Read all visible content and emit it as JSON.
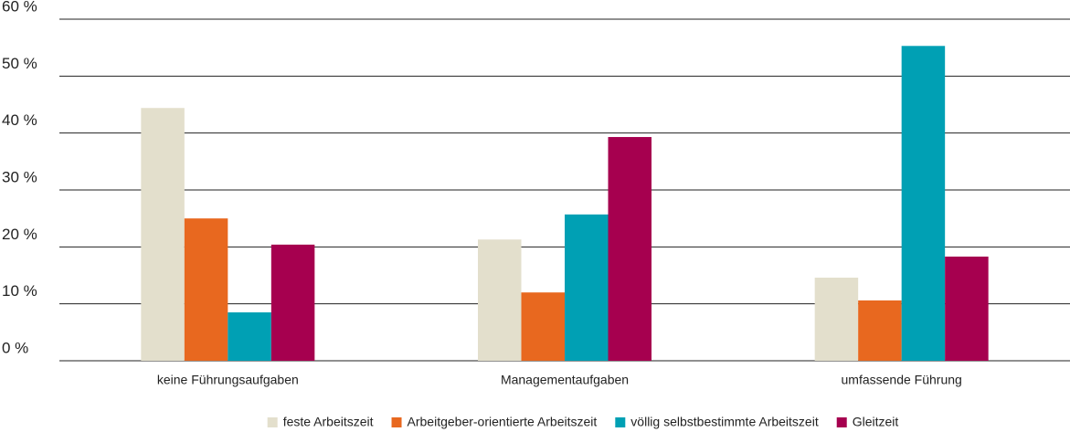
{
  "chart_data": {
    "type": "bar",
    "categories": [
      "keine Führungsaufgaben",
      "Managementaufgaben",
      "umfassende Führung"
    ],
    "series": [
      {
        "name": "feste Arbeitszeit",
        "color": "#e3dfcc",
        "values": [
          44.4,
          21.3,
          14.6
        ]
      },
      {
        "name": "Arbeitgeber-orientierte Arbeitszeit",
        "color": "#e8681f",
        "values": [
          25.0,
          12.0,
          10.6
        ]
      },
      {
        "name": "völlig selbstbestimmte Arbeitszeit",
        "color": "#00a0b4",
        "values": [
          8.5,
          25.7,
          55.3
        ]
      },
      {
        "name": "Gleitzeit",
        "color": "#a6004f",
        "values": [
          20.4,
          39.3,
          18.3
        ]
      }
    ],
    "ylim": [
      0,
      60
    ],
    "yticks": [
      {
        "value": 0,
        "label": "0 %"
      },
      {
        "value": 10,
        "label": "10 %"
      },
      {
        "value": 20,
        "label": "20 %"
      },
      {
        "value": 30,
        "label": "30 %"
      },
      {
        "value": 40,
        "label": "40 %"
      },
      {
        "value": 50,
        "label": "50 %"
      },
      {
        "value": 60,
        "label": "60 %"
      }
    ],
    "grid": true,
    "legend": "bottom"
  }
}
